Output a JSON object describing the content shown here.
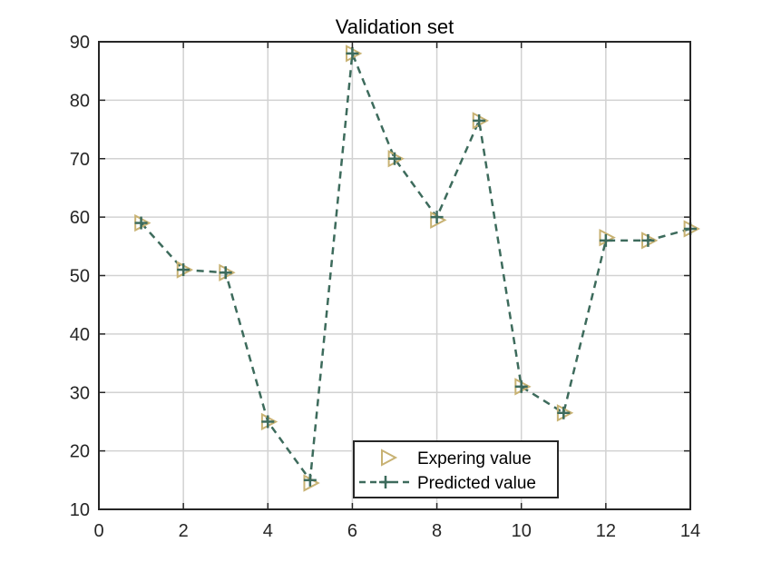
{
  "chart_data": {
    "type": "line",
    "title": "Validation set",
    "xlabel": "",
    "ylabel": "",
    "xlim": [
      0,
      14
    ],
    "ylim": [
      10,
      90
    ],
    "xticks": [
      0,
      2,
      4,
      6,
      8,
      10,
      12,
      14
    ],
    "yticks": [
      10,
      20,
      30,
      40,
      50,
      60,
      70,
      80,
      90
    ],
    "grid": true,
    "legend_position": "bottom-center",
    "x": [
      1,
      2,
      3,
      4,
      5,
      6,
      7,
      8,
      9,
      10,
      11,
      12,
      13,
      14
    ],
    "series": [
      {
        "name": "Expering value",
        "marker": "triangle-right",
        "line": "none",
        "color": "#c8b273",
        "values": [
          59,
          51,
          50.5,
          25,
          14.5,
          88,
          70,
          59.5,
          76.5,
          31,
          26.5,
          56.5,
          56,
          58
        ]
      },
      {
        "name": "Predicted value",
        "marker": "plus",
        "line": "dashed",
        "color": "#3d6b5c",
        "values": [
          59,
          51,
          50.5,
          25,
          15,
          88,
          70,
          60,
          76.5,
          31,
          26.5,
          56,
          56,
          58
        ]
      }
    ]
  }
}
